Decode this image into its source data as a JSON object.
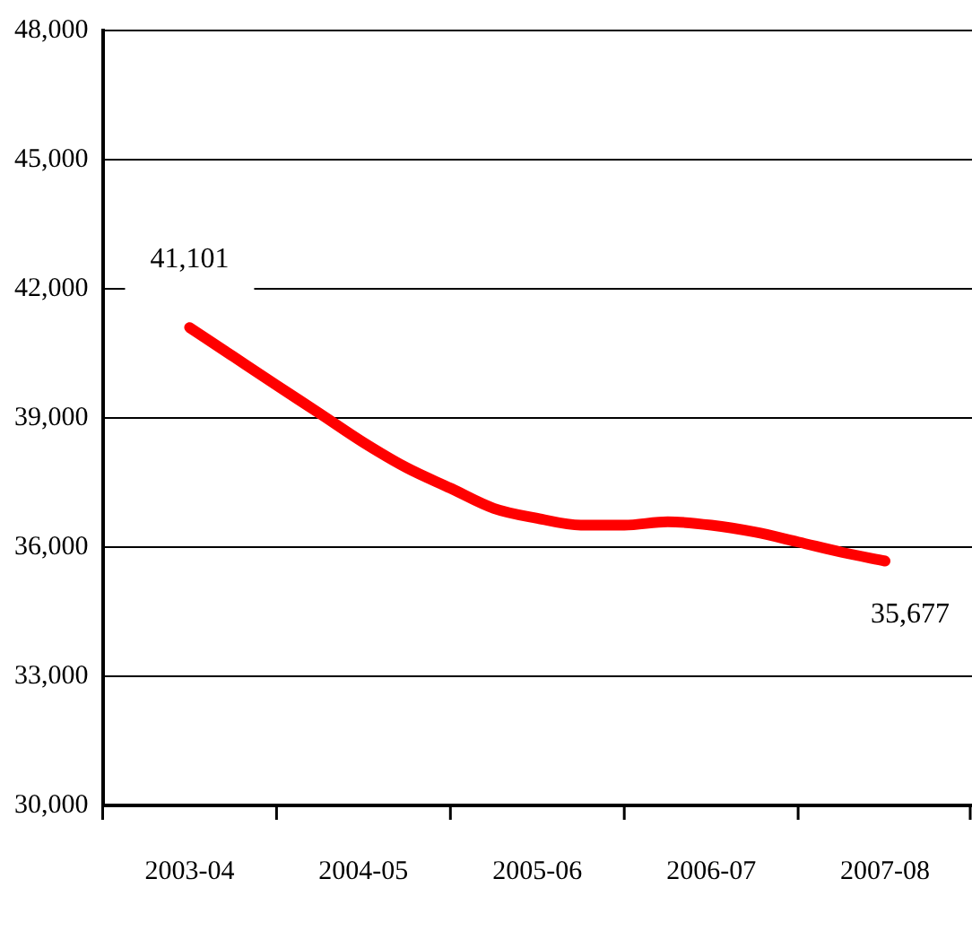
{
  "chart_data": {
    "type": "line",
    "categories": [
      "2003-04",
      null,
      null,
      null,
      "2004-05",
      null,
      null,
      null,
      "2005-06",
      null,
      null,
      null,
      "2006-07",
      null,
      null,
      null,
      "2007-08"
    ],
    "series": [
      {
        "color": "#ff0000",
        "values": [
          41101,
          40430,
          39760,
          39100,
          38430,
          37840,
          37370,
          36900,
          36670,
          36510,
          36510,
          36590,
          36510,
          36350,
          36120,
          35880,
          35677
        ],
        "value_labels": [
          "41,101",
          null,
          null,
          null,
          null,
          null,
          null,
          null,
          null,
          null,
          null,
          null,
          null,
          null,
          null,
          null,
          "35,677"
        ]
      }
    ],
    "ylim": [
      30000,
      48000
    ],
    "yticks": [
      {
        "value": 30000,
        "label": "30,000"
      },
      {
        "value": 33000,
        "label": "33,000"
      },
      {
        "value": 36000,
        "label": "36,000"
      },
      {
        "value": 39000,
        "label": "39,000"
      },
      {
        "value": 42000,
        "label": "42,000"
      },
      {
        "value": 45000,
        "label": "45,000"
      },
      {
        "value": 48000,
        "label": "48,000"
      }
    ],
    "grid": "y",
    "legend": false,
    "marker": "none",
    "line_style": "solid"
  }
}
